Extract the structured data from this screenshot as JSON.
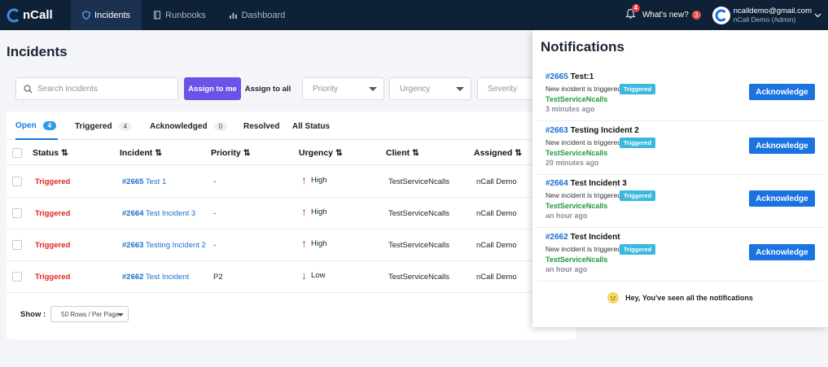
{
  "nav": {
    "brand": "nCall",
    "tabs": [
      {
        "label": "Incidents",
        "icon": "shield-icon",
        "active": true
      },
      {
        "label": "Runbooks",
        "icon": "book-icon",
        "active": false
      },
      {
        "label": "Dashboard",
        "icon": "chart-icon",
        "active": false
      }
    ],
    "bell_count": "4",
    "whats_new": "What's new?",
    "whats_new_count": "3",
    "user_email": "ncalldemo@gmail.com",
    "user_role": "nCall Demo (Admin)"
  },
  "page": {
    "title": "Incidents",
    "search_placeholder": "Search incidents",
    "assign_me": "Assign to me",
    "assign_all": "Assign to all",
    "filters": [
      "Priority",
      "Urgency",
      "Severity"
    ]
  },
  "tabs": [
    {
      "label": "Open",
      "count": "4"
    },
    {
      "label": "Triggered",
      "count": "4"
    },
    {
      "label": "Acknowledged",
      "count": "0"
    },
    {
      "label": "Resolved",
      "count": ""
    },
    {
      "label": "All Status",
      "count": ""
    }
  ],
  "table": {
    "headers": [
      "Status",
      "Incident",
      "Priority",
      "Urgency",
      "Client",
      "Assigned"
    ],
    "rows": [
      {
        "status": "Triggered",
        "num": "#2665",
        "title": "Test 1",
        "priority": "-",
        "urgency": "High",
        "client": "TestServiceNcalls",
        "assigned": "nCall Demo"
      },
      {
        "status": "Triggered",
        "num": "#2664",
        "title": "Test Incident 3",
        "priority": "-",
        "urgency": "High",
        "client": "TestServiceNcalls",
        "assigned": "nCall Demo"
      },
      {
        "status": "Triggered",
        "num": "#2663",
        "title": "Testing Incident 2",
        "priority": "-",
        "urgency": "High",
        "client": "TestServiceNcalls",
        "assigned": "nCall Demo"
      },
      {
        "status": "Triggered",
        "num": "#2662",
        "title": "Test Incident",
        "priority": "P2",
        "urgency": "Low",
        "client": "TestServiceNcalls",
        "assigned": "nCall Demo"
      }
    ],
    "show_label": "Show :",
    "rows_per_page": "50 Rows / Per Page"
  },
  "notifications": {
    "title": "Notifications",
    "items": [
      {
        "num": "#2665",
        "title": "Test:1",
        "text": "New incident is triggered",
        "badge": "Triggered",
        "service": "TestServiceNcalls",
        "time": "3 minutes ago",
        "action": "Acknowledge"
      },
      {
        "num": "#2663",
        "title": "Testing Incident 2",
        "text": "New incident is triggered",
        "badge": "Triggered",
        "service": "TestServiceNcalls",
        "time": "20 minutes ago",
        "action": "Acknowledge"
      },
      {
        "num": "#2664",
        "title": "Test Incident 3",
        "text": "New incident is triggered",
        "badge": "Triggered",
        "service": "TestServiceNcalls",
        "time": "an hour ago",
        "action": "Acknowledge"
      },
      {
        "num": "#2662",
        "title": "Test Incident",
        "text": "New incident is triggered",
        "badge": "Triggered",
        "service": "TestServiceNcalls",
        "time": "an hour ago",
        "action": "Acknowledge"
      }
    ],
    "footer": "Hey, You've seen all the notifications"
  },
  "colors": {
    "accent": "#1a73e0",
    "assign_button": "#6a53e8",
    "triggered": "#e02424",
    "nav_bg": "#0f2137"
  }
}
